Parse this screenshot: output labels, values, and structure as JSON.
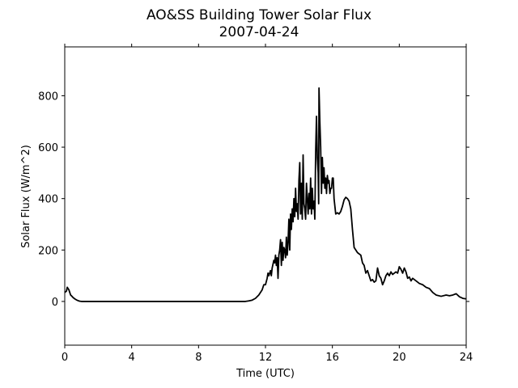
{
  "chart_data": {
    "type": "line",
    "title": "AO&SS Building Tower Solar Flux",
    "subtitle": "2007-04-24",
    "xlabel": "Time (UTC)",
    "ylabel": "Solar Flux (W/m^2)",
    "xlim": [
      0,
      24
    ],
    "ylim": [
      -170,
      990
    ],
    "xticks": [
      0,
      4,
      8,
      12,
      16,
      20,
      24
    ],
    "xtick_labels": [
      "0",
      "4",
      "8",
      "12",
      "16",
      "20",
      "24"
    ],
    "yticks": [
      0,
      200,
      400,
      600,
      800
    ],
    "ytick_labels": [
      "0",
      "200",
      "400",
      "600",
      "800"
    ],
    "grid": false,
    "line_color": "#000000",
    "series": [
      {
        "x": [
          0.0,
          0.1,
          0.15,
          0.2,
          0.25,
          0.3,
          0.35,
          0.4,
          0.5,
          0.6,
          0.7,
          0.8,
          0.9,
          1.0,
          1.2,
          1.5,
          2.0,
          3.0,
          4.0,
          5.0,
          6.0,
          7.0,
          8.0,
          9.0,
          10.0,
          10.5,
          10.8,
          11.0,
          11.2,
          11.4,
          11.6,
          11.8,
          11.9,
          12.0,
          12.1,
          12.15,
          12.2,
          12.3,
          12.35,
          12.4,
          12.5,
          12.55,
          12.6,
          12.65,
          12.7,
          12.75,
          12.8,
          12.85,
          12.9,
          12.95,
          13.0,
          13.05,
          13.1,
          13.15,
          13.2,
          13.25,
          13.3,
          13.35,
          13.4,
          13.45,
          13.5,
          13.55,
          13.6,
          13.65,
          13.7,
          13.75,
          13.8,
          13.85,
          13.9,
          13.95,
          14.0,
          14.05,
          14.1,
          14.15,
          14.2,
          14.25,
          14.3,
          14.35,
          14.4,
          14.45,
          14.5,
          14.55,
          14.6,
          14.65,
          14.7,
          14.75,
          14.8,
          14.85,
          14.9,
          14.95,
          15.0,
          15.05,
          15.1,
          15.15,
          15.18,
          15.2,
          15.22,
          15.25,
          15.3,
          15.35,
          15.4,
          15.45,
          15.5,
          15.55,
          15.6,
          15.65,
          15.7,
          15.75,
          15.8,
          15.85,
          15.9,
          15.95,
          16.0,
          16.05,
          16.1,
          16.2,
          16.3,
          16.4,
          16.5,
          16.6,
          16.7,
          16.8,
          16.9,
          17.0,
          17.1,
          17.2,
          17.3,
          17.5,
          17.7,
          17.8,
          17.9,
          18.0,
          18.1,
          18.2,
          18.3,
          18.4,
          18.5,
          18.6,
          18.7,
          18.8,
          18.9,
          19.0,
          19.1,
          19.2,
          19.3,
          19.4,
          19.5,
          19.6,
          19.7,
          19.8,
          19.9,
          20.0,
          20.1,
          20.2,
          20.3,
          20.4,
          20.5,
          20.6,
          20.7,
          20.8,
          21.0,
          21.2,
          21.4,
          21.6,
          21.8,
          22.0,
          22.2,
          22.5,
          22.8,
          23.0,
          23.2,
          23.4,
          23.6,
          23.8,
          24.0
        ],
        "y": [
          35,
          40,
          55,
          50,
          45,
          35,
          25,
          22,
          15,
          10,
          6,
          3,
          1,
          0,
          0,
          0,
          0,
          0,
          0,
          0,
          0,
          0,
          0,
          0,
          0,
          0,
          0,
          2,
          5,
          12,
          25,
          45,
          65,
          65,
          90,
          110,
          100,
          120,
          100,
          130,
          160,
          150,
          180,
          140,
          170,
          90,
          180,
          200,
          240,
          140,
          230,
          160,
          210,
          200,
          170,
          250,
          180,
          230,
          320,
          200,
          340,
          280,
          360,
          310,
          400,
          330,
          440,
          350,
          380,
          320,
          470,
          540,
          340,
          460,
          320,
          570,
          380,
          360,
          320,
          460,
          400,
          340,
          420,
          360,
          480,
          340,
          440,
          360,
          390,
          320,
          580,
          720,
          560,
          500,
          380,
          830,
          780,
          700,
          600,
          420,
          560,
          460,
          520,
          440,
          480,
          420,
          490,
          460,
          470,
          420,
          440,
          440,
          480,
          480,
          400,
          340,
          345,
          340,
          350,
          370,
          395,
          405,
          400,
          390,
          360,
          280,
          210,
          190,
          180,
          150,
          140,
          110,
          120,
          100,
          80,
          85,
          75,
          80,
          130,
          100,
          90,
          65,
          80,
          100,
          110,
          100,
          115,
          105,
          110,
          115,
          110,
          135,
          125,
          110,
          130,
          115,
          90,
          95,
          80,
          90,
          80,
          70,
          65,
          55,
          50,
          35,
          25,
          20,
          25,
          22,
          25,
          30,
          18,
          12,
          10
        ]
      }
    ]
  }
}
